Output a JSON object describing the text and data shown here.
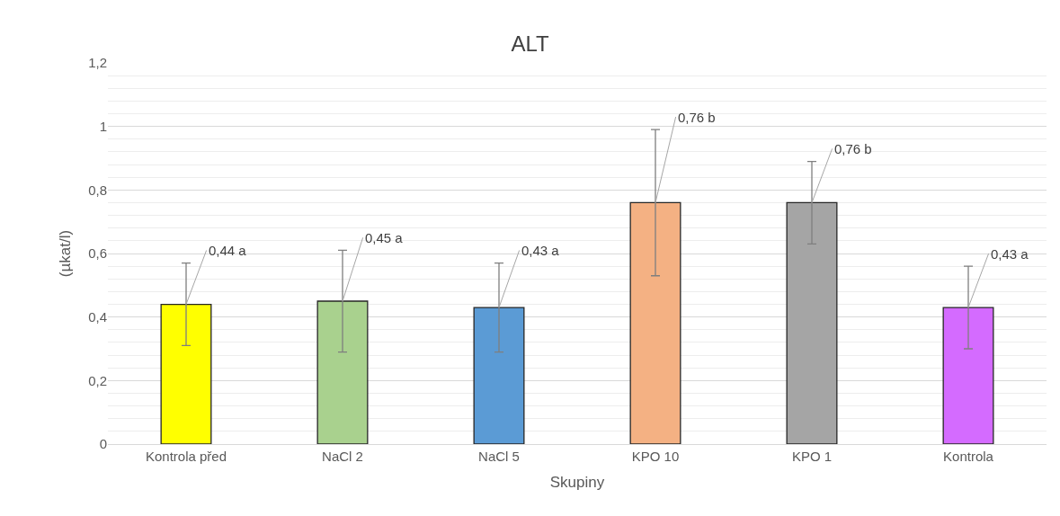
{
  "chart_data": {
    "type": "bar",
    "title": "ALT",
    "xlabel": "Skupiny",
    "ylabel": "(µkat/l)",
    "categories": [
      "Kontrola před",
      "NaCl 2",
      "NaCl 5",
      "KPO 10",
      "KPO 1",
      "Kontrola"
    ],
    "values": [
      0.44,
      0.45,
      0.43,
      0.76,
      0.76,
      0.43
    ],
    "colors": [
      "#ffff00",
      "#a9d18e",
      "#5b9bd5",
      "#f4b183",
      "#a5a5a5",
      "#d46bff"
    ],
    "errors": [
      [
        0.31,
        0.57
      ],
      [
        0.29,
        0.61
      ],
      [
        0.29,
        0.57
      ],
      [
        0.53,
        0.99
      ],
      [
        0.63,
        0.89
      ],
      [
        0.3,
        0.56
      ]
    ],
    "value_labels": [
      "0,44 a",
      "0,45 a",
      "0,43 a",
      "0,76 b",
      "0,76 b",
      "0,43 a"
    ],
    "ylim": [
      0,
      1.2
    ],
    "yticks": [
      {
        "value": 0,
        "label": "0"
      },
      {
        "value": 0.2,
        "label": "0,2"
      },
      {
        "value": 0.4,
        "label": "0,4"
      },
      {
        "value": 0.6,
        "label": "0,6"
      },
      {
        "value": 0.8,
        "label": "0,8"
      },
      {
        "value": 1,
        "label": "1"
      },
      {
        "value": 1.2,
        "label": "1,2"
      }
    ],
    "grid": "y",
    "legend": false
  }
}
